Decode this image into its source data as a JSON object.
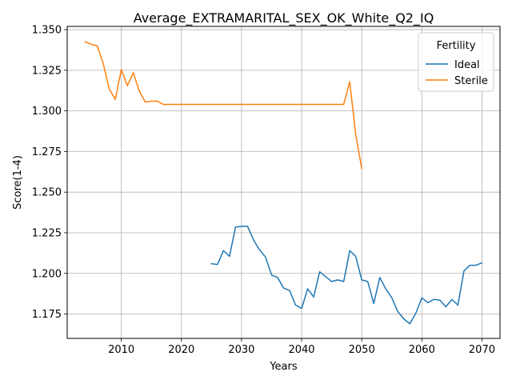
{
  "chart_data": {
    "type": "line",
    "title": "Average_EXTRAMARITAL_SEX_OK_White_Q2_IQ",
    "xlabel": "Years",
    "ylabel": "Score(1-4)",
    "xlim": [
      2001,
      2073
    ],
    "ylim": [
      1.16,
      1.352
    ],
    "xticks": [
      2010,
      2020,
      2030,
      2040,
      2050,
      2060,
      2070
    ],
    "yticks": [
      1.175,
      1.2,
      1.225,
      1.25,
      1.275,
      1.3,
      1.325,
      1.35
    ],
    "ytick_labels": [
      "1.175",
      "1.200",
      "1.225",
      "1.250",
      "1.275",
      "1.300",
      "1.325",
      "1.350"
    ],
    "grid": true,
    "legend": {
      "title": "Fertility",
      "position": "top-right"
    },
    "series": [
      {
        "name": "Ideal",
        "color": "#1f77b4",
        "x": [
          2025,
          2026,
          2027,
          2028,
          2029,
          2030,
          2031,
          2032,
          2033,
          2034,
          2035,
          2036,
          2037,
          2038,
          2039,
          2040,
          2041,
          2042,
          2043,
          2044,
          2045,
          2046,
          2047,
          2048,
          2049,
          2050,
          2051,
          2052,
          2053,
          2054,
          2055,
          2056,
          2057,
          2058,
          2059,
          2060,
          2061,
          2062,
          2063,
          2064,
          2065,
          2066,
          2067,
          2068,
          2069,
          2070
        ],
        "values": [
          1.206,
          1.2055,
          1.214,
          1.2105,
          1.2285,
          1.229,
          1.229,
          1.2205,
          1.2145,
          1.21,
          1.199,
          1.1975,
          1.191,
          1.1895,
          1.1805,
          1.1785,
          1.1905,
          1.1855,
          1.201,
          1.198,
          1.195,
          1.196,
          1.195,
          1.214,
          1.2105,
          1.196,
          1.195,
          1.1815,
          1.1975,
          1.1905,
          1.185,
          1.1765,
          1.172,
          1.169,
          1.1755,
          1.185,
          1.182,
          1.184,
          1.1835,
          1.1795,
          1.184,
          1.1805,
          1.2015,
          1.205,
          1.205,
          1.2065
        ]
      },
      {
        "name": "Sterile",
        "color": "#ff7f0e",
        "x": [
          2004,
          2005,
          2006,
          2007,
          2008,
          2009,
          2010,
          2011,
          2012,
          2013,
          2014,
          2015,
          2016,
          2017,
          2018,
          2019,
          2020,
          2021,
          2022,
          2023,
          2024,
          2025,
          2026,
          2027,
          2028,
          2029,
          2030,
          2031,
          2032,
          2033,
          2034,
          2035,
          2036,
          2037,
          2038,
          2039,
          2040,
          2041,
          2042,
          2043,
          2044,
          2045,
          2046,
          2047,
          2048,
          2049,
          2050
        ],
        "values": [
          1.3425,
          1.341,
          1.34,
          1.329,
          1.3135,
          1.307,
          1.3255,
          1.3155,
          1.3235,
          1.312,
          1.3055,
          1.306,
          1.306,
          1.304,
          1.304,
          1.304,
          1.304,
          1.304,
          1.304,
          1.304,
          1.304,
          1.304,
          1.304,
          1.304,
          1.304,
          1.304,
          1.304,
          1.304,
          1.304,
          1.304,
          1.304,
          1.304,
          1.304,
          1.304,
          1.304,
          1.304,
          1.304,
          1.304,
          1.304,
          1.304,
          1.304,
          1.304,
          1.304,
          1.304,
          1.318,
          1.2855,
          1.2645
        ]
      }
    ]
  }
}
